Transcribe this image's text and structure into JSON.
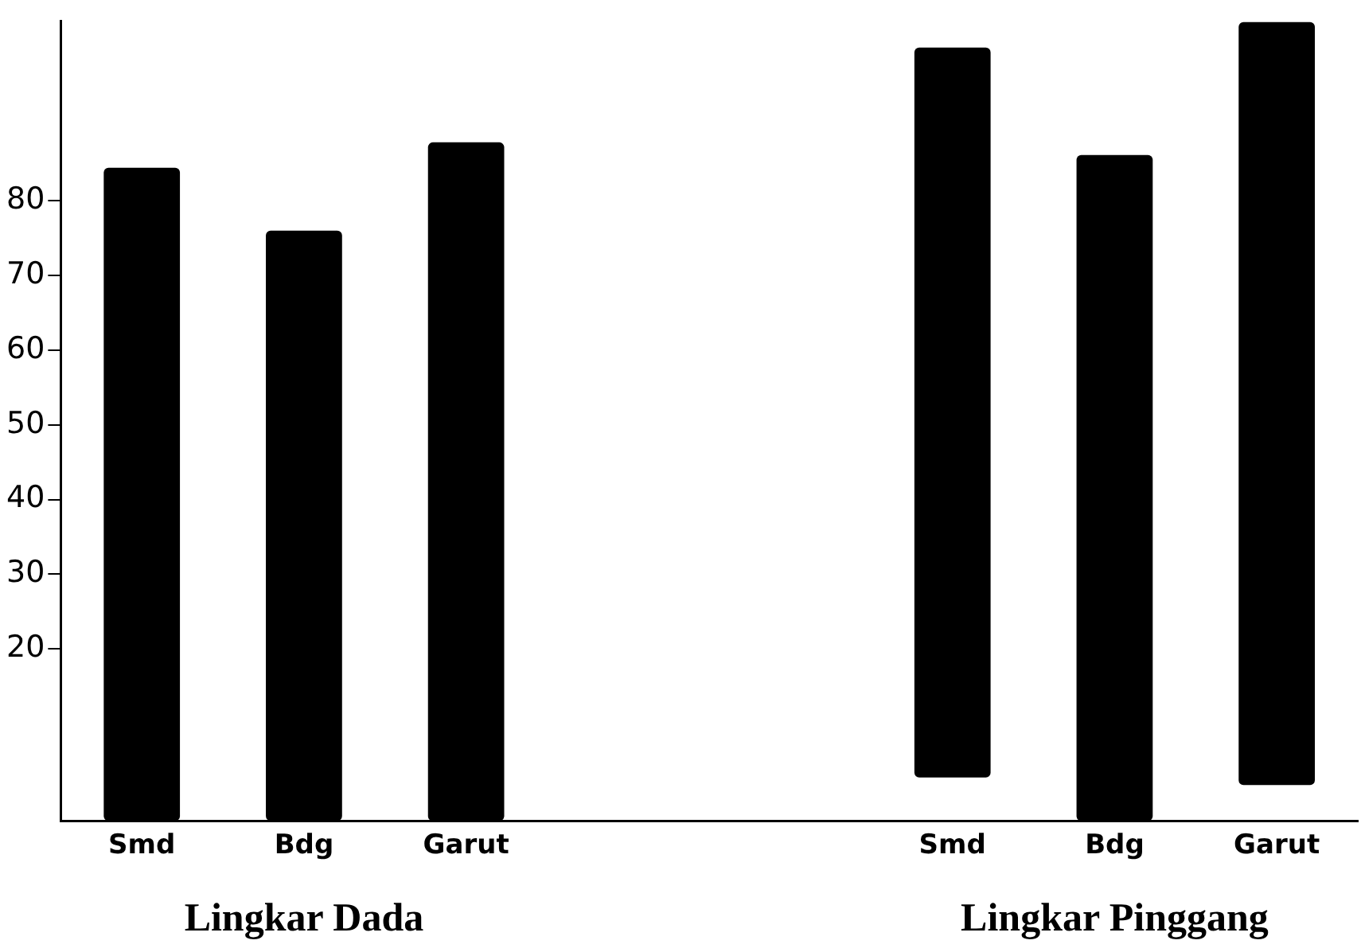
{
  "chart_data": {
    "type": "bar",
    "categories": [
      "Smd",
      "Bdg",
      "Garut",
      null,
      null,
      "Smd",
      "Bdg",
      "Garut"
    ],
    "values": [
      87.4,
      79,
      90.8,
      null,
      null,
      97.7,
      89.1,
      102.1
    ],
    "base": [
      -3,
      -3,
      -3,
      null,
      null,
      2.8,
      -3,
      1.8
    ],
    "color": "#000000",
    "ylim": [
      -3,
      104
    ],
    "yticks": [
      20,
      30,
      40,
      50,
      60,
      70,
      80
    ],
    "grid": false,
    "legend": false,
    "annotations": [
      "Lingkar Dada",
      "Lingkar Pinggang"
    ]
  }
}
